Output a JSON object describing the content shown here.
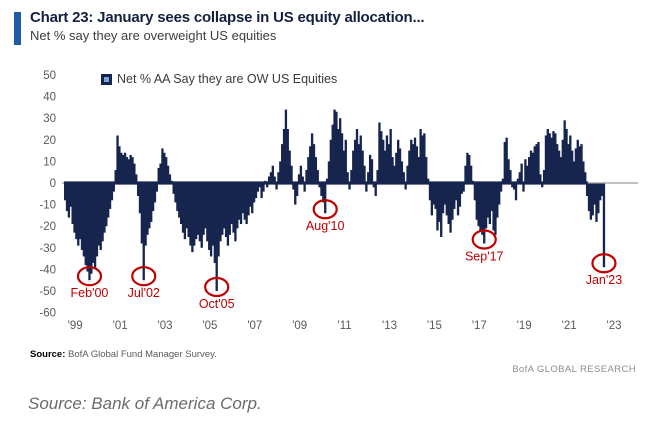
{
  "header": {
    "title": "Chart 23: January sees collapse in US equity allocation...",
    "subtitle": "Net % say they are overweight US equities"
  },
  "legend": {
    "label": "Net % AA Say they are OW US Equities"
  },
  "footer": {
    "source_label": "Source:",
    "source_text": " BofA Global Fund Manager Survey.",
    "brand": "BofA GLOBAL RESEARCH",
    "caption": "Source: Bank of America Corp."
  },
  "colors": {
    "bar": "#16254e",
    "accent_bar": "#1f5ca8",
    "annotation": "#c00000",
    "axis_text": "#595959",
    "zero_line": "#9b9b9b"
  },
  "chart_data": {
    "type": "bar",
    "title": "Net % AA Say they are OW US Equities",
    "frequency": "monthly",
    "x_start": "1999-01",
    "x_end": "2023-01",
    "ylim": [
      -60,
      50
    ],
    "grid": false,
    "legend_position": "top-left",
    "y_axis": {
      "ticks": [
        50,
        40,
        30,
        20,
        10,
        0,
        -10,
        -20,
        -30,
        -40,
        -50,
        -60
      ]
    },
    "x_axis": {
      "ticks": [
        {
          "label": "'99",
          "year": 1999
        },
        {
          "label": "'01",
          "year": 2001
        },
        {
          "label": "'03",
          "year": 2003
        },
        {
          "label": "'05",
          "year": 2005
        },
        {
          "label": "'07",
          "year": 2007
        },
        {
          "label": "'09",
          "year": 2009
        },
        {
          "label": "'11",
          "year": 2011
        },
        {
          "label": "'13",
          "year": 2013
        },
        {
          "label": "'15",
          "year": 2015
        },
        {
          "label": "'17",
          "year": 2017
        },
        {
          "label": "'19",
          "year": 2019
        },
        {
          "label": "'21",
          "year": 2021
        },
        {
          "label": "'23",
          "year": 2023
        }
      ]
    },
    "series": [
      {
        "name": "Net % AA Say they are OW US Equities",
        "values": [
          -8,
          -13,
          -16,
          -11,
          -19,
          -23,
          -26,
          -29,
          -26,
          -31,
          -34,
          -38,
          -41,
          -45,
          -42,
          -37,
          -40,
          -34,
          -29,
          -31,
          -27,
          -23,
          -20,
          -16,
          -12,
          -8,
          -4,
          6,
          22,
          17,
          14,
          13,
          14,
          12,
          11,
          13,
          12,
          9,
          4,
          -6,
          -14,
          -28,
          -45,
          -29,
          -24,
          -21,
          -18,
          -13,
          -9,
          -4,
          7,
          9,
          16,
          14,
          12,
          8,
          4,
          1,
          -5,
          -9,
          -13,
          -16,
          -19,
          -23,
          -26,
          -21,
          -25,
          -29,
          -32,
          -29,
          -26,
          -24,
          -27,
          -30,
          -24,
          -21,
          -27,
          -31,
          -34,
          -29,
          -37,
          -50,
          -34,
          -27,
          -24,
          -21,
          -25,
          -29,
          -24,
          -19,
          -23,
          -27,
          -21,
          -17,
          -19,
          -14,
          -17,
          -19,
          -15,
          -11,
          -14,
          -9,
          -7,
          -4,
          -2,
          -7,
          -4,
          1,
          -2,
          3,
          5,
          8,
          3,
          -3,
          5,
          10,
          18,
          25,
          34,
          25,
          15,
          8,
          -3,
          -10,
          -6,
          4,
          8,
          3,
          -4,
          6,
          12,
          17,
          23,
          18,
          12,
          6,
          -2,
          -6,
          -9,
          -14,
          2,
          10,
          20,
          27,
          34,
          33,
          25,
          30,
          23,
          15,
          20,
          5,
          -3,
          6,
          15,
          20,
          25,
          18,
          22,
          15,
          8,
          -4,
          5,
          13,
          11,
          -2,
          -6,
          6,
          28,
          24,
          20,
          15,
          22,
          18,
          25,
          12,
          8,
          14,
          20,
          16,
          10,
          5,
          -3,
          8,
          15,
          20,
          18,
          21,
          17,
          12,
          25,
          22,
          23,
          12,
          2,
          -8,
          -15,
          -10,
          -12,
          -22,
          -18,
          -25,
          -14,
          -10,
          -15,
          -19,
          -23,
          -17,
          -12,
          -8,
          -15,
          -11,
          -5,
          -4,
          8,
          14,
          13,
          8,
          1,
          -8,
          -17,
          -20,
          -22,
          -24,
          -28,
          -21,
          -16,
          -19,
          -13,
          -22,
          -24,
          -16,
          -10,
          -4,
          2,
          19,
          21,
          11,
          6,
          -2,
          -3,
          -8,
          2,
          5,
          9,
          -4,
          11,
          8,
          12,
          15,
          14,
          17,
          18,
          19,
          4,
          -2,
          6,
          22,
          25,
          23,
          21,
          24,
          23,
          18,
          15,
          12,
          20,
          29,
          25,
          18,
          22,
          15,
          10,
          16,
          20,
          17,
          18,
          10,
          5,
          -6,
          -13,
          -17,
          -15,
          -10,
          -18,
          -14,
          -8,
          -6,
          -39
        ]
      }
    ],
    "annotations": [
      {
        "label": "Feb'00",
        "month": "2000-02",
        "value": -45
      },
      {
        "label": "Jul'02",
        "month": "2002-07",
        "value": -45
      },
      {
        "label": "Oct'05",
        "month": "2005-10",
        "value": -50
      },
      {
        "label": "Aug'10",
        "month": "2010-08",
        "value": -14
      },
      {
        "label": "Sep'17",
        "month": "2017-09",
        "value": -28
      },
      {
        "label": "Jan'23",
        "month": "2023-01",
        "value": -39
      }
    ]
  }
}
